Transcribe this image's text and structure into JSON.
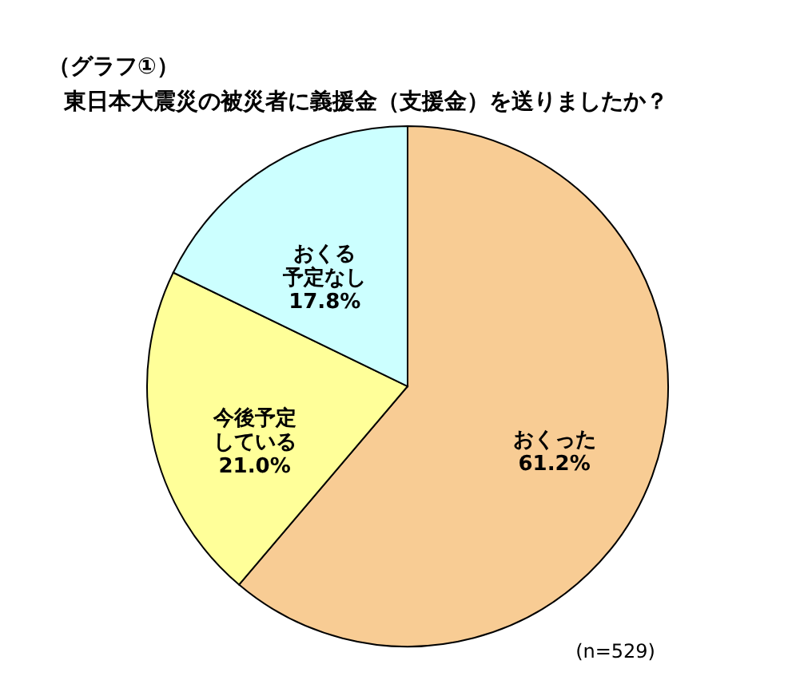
{
  "chart_data": {
    "type": "pie",
    "title": "（グラフ①）",
    "subtitle": "東日本大震災の被災者に義援金（支援金）を送りましたか？",
    "categories": [
      "おくった",
      "今後予定している",
      "おくる予定なし"
    ],
    "values": [
      61.2,
      21.0,
      17.8
    ],
    "value_labels": [
      "61.2%",
      "21.0%",
      "17.8%"
    ],
    "colors": [
      "#f8cc94",
      "#ffff99",
      "#ccffff"
    ],
    "annotations": [
      "(n=529)"
    ]
  }
}
